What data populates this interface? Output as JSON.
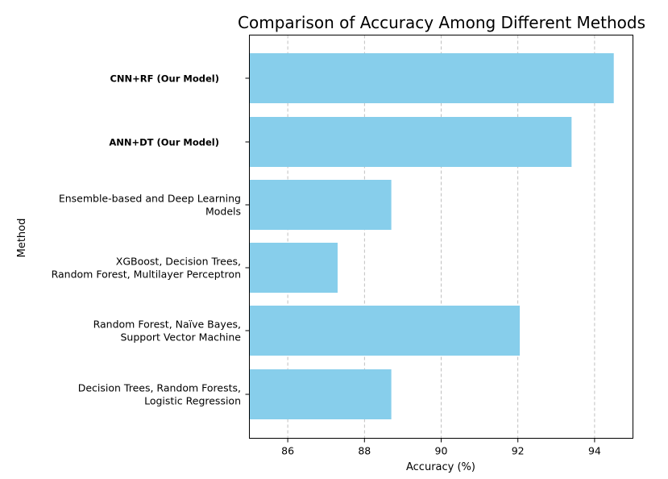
{
  "chart_data": {
    "type": "bar",
    "orientation": "horizontal",
    "title": "Comparison of Accuracy Among Different Methods",
    "xlabel": "Accuracy (%)",
    "ylabel": "Method",
    "xlim": [
      85,
      95
    ],
    "xticks": [
      86,
      88,
      90,
      92,
      94
    ],
    "grid": "x-dashed",
    "bar_color": "#87CEEB",
    "categories": [
      {
        "lines": [
          "CNN+RF (Our Model)"
        ],
        "bold": true
      },
      {
        "lines": [
          "ANN+DT (Our Model)"
        ],
        "bold": true
      },
      {
        "lines": [
          "Ensemble-based and Deep Learning",
          "Models"
        ],
        "bold": false
      },
      {
        "lines": [
          "XGBoost, Decision Trees,",
          "Random Forest, Multilayer Perceptron"
        ],
        "bold": false
      },
      {
        "lines": [
          "Random Forest, Naïve Bayes,",
          "Support Vector Machine"
        ],
        "bold": false
      },
      {
        "lines": [
          "Decision Trees, Random Forests,",
          "Logistic Regression"
        ],
        "bold": false
      }
    ],
    "values": [
      94.5,
      93.4,
      88.7,
      87.3,
      92.05,
      88.7
    ]
  }
}
